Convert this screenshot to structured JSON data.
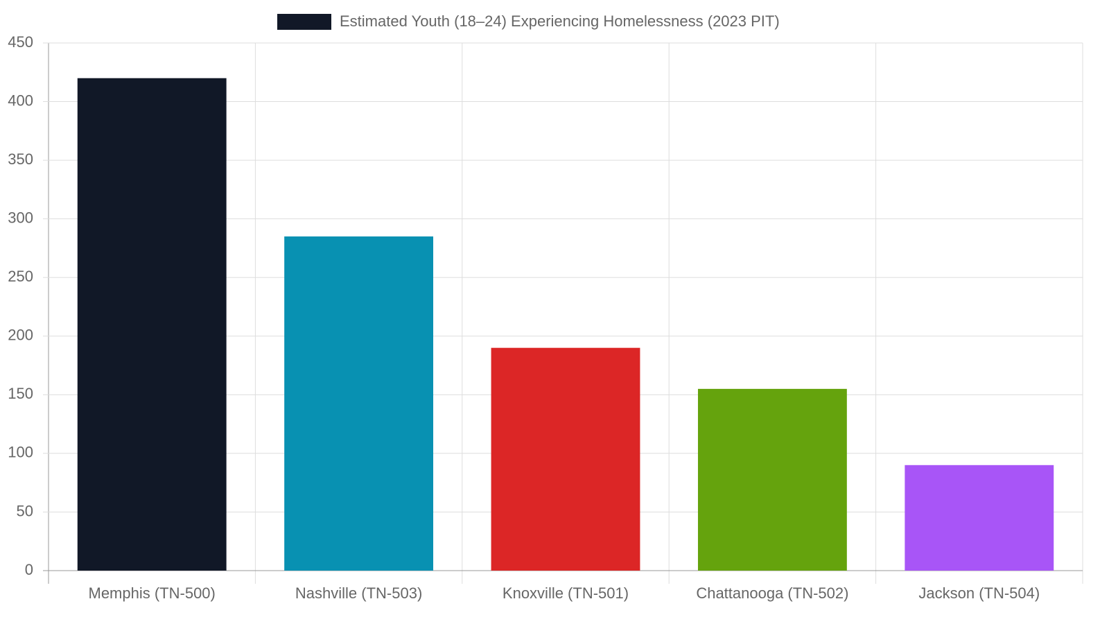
{
  "chart_data": {
    "type": "bar",
    "categories": [
      "Memphis (TN-500)",
      "Nashville (TN-503)",
      "Knoxville (TN-501)",
      "Chattanooga (TN-502)",
      "Jackson (TN-504)"
    ],
    "series": [
      {
        "name": "Estimated Youth (18–24) Experiencing Homelessness (2023 PIT)",
        "color": "#111827",
        "colors": [
          "#111827",
          "#0891b2",
          "#dc2626",
          "#65a30d",
          "#a855f7"
        ],
        "values": [
          420,
          285,
          190,
          155,
          90
        ]
      }
    ],
    "ylim": [
      0,
      450
    ],
    "yticks": [
      0,
      50,
      100,
      150,
      200,
      250,
      300,
      350,
      400,
      450
    ],
    "grid": true,
    "legend": "top"
  }
}
